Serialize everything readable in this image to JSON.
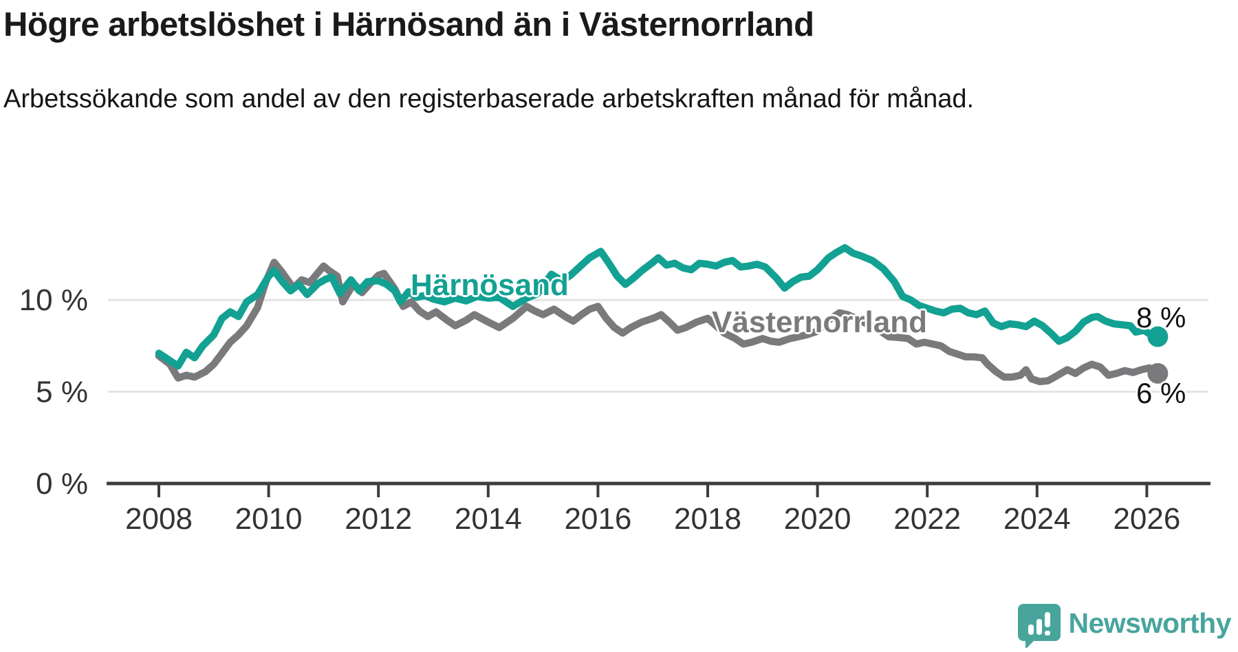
{
  "title": "Högre arbetslöshet i Härnösand än i Västernorrland",
  "subtitle": "Arbetssökande som andel av den registerbaserade arbetskraften månad för månad.",
  "colors": {
    "teal": "#12a192",
    "gray": "#7a7a7c",
    "grid": "#e3e3e3",
    "axis": "#3c3c3c",
    "tick_text": "#333333",
    "logo": "#47a59c"
  },
  "branding": {
    "logo_text": "Newsworthy",
    "logo_icon": "speech-bubble-bar-chart"
  },
  "chart_data": {
    "type": "line",
    "title": "Högre arbetslöshet i Härnösand än i Västernorrland",
    "subtitle": "Arbetssökande som andel av den registerbaserade arbetskraften månad för månad.",
    "unit": "%",
    "x_domain": [
      2007.9,
      2027.2
    ],
    "y_domain": [
      0,
      15
    ],
    "grid": "horizontal",
    "legend_position": "inline-labels",
    "x_ticks": [
      2008,
      2010,
      2012,
      2014,
      2016,
      2018,
      2020,
      2022,
      2024,
      2026
    ],
    "y_ticks": [
      {
        "value": 0,
        "label": "0 %"
      },
      {
        "value": 5,
        "label": "5 %"
      },
      {
        "value": 10,
        "label": "10 %"
      }
    ],
    "series": [
      {
        "name": "Härnösand",
        "color": "#12a192",
        "end_label": "8 %",
        "end_value": 8,
        "points": [
          [
            2008.0,
            7.1
          ],
          [
            2008.2,
            6.7
          ],
          [
            2008.35,
            6.4
          ],
          [
            2008.5,
            7.15
          ],
          [
            2008.65,
            6.85
          ],
          [
            2008.8,
            7.5
          ],
          [
            2009.0,
            8.1
          ],
          [
            2009.15,
            9.0
          ],
          [
            2009.3,
            9.35
          ],
          [
            2009.45,
            9.1
          ],
          [
            2009.6,
            9.9
          ],
          [
            2009.8,
            10.3
          ],
          [
            2010.0,
            11.3
          ],
          [
            2010.1,
            11.6
          ],
          [
            2010.25,
            11.0
          ],
          [
            2010.4,
            10.5
          ],
          [
            2010.55,
            10.85
          ],
          [
            2010.7,
            10.3
          ],
          [
            2010.9,
            10.9
          ],
          [
            2011.05,
            11.15
          ],
          [
            2011.15,
            11.25
          ],
          [
            2011.3,
            10.35
          ],
          [
            2011.5,
            11.1
          ],
          [
            2011.65,
            10.5
          ],
          [
            2011.8,
            11.0
          ],
          [
            2012.0,
            11.05
          ],
          [
            2012.15,
            10.85
          ],
          [
            2012.3,
            10.5
          ],
          [
            2012.4,
            9.9
          ],
          [
            2012.55,
            10.45
          ],
          [
            2012.7,
            10.15
          ],
          [
            2012.85,
            10.25
          ],
          [
            2013.0,
            10.05
          ],
          [
            2013.2,
            9.9
          ],
          [
            2013.4,
            10.1
          ],
          [
            2013.6,
            9.95
          ],
          [
            2013.8,
            10.2
          ],
          [
            2014.0,
            10.1
          ],
          [
            2014.2,
            10.15
          ],
          [
            2014.45,
            9.65
          ],
          [
            2014.7,
            10.1
          ],
          [
            2014.9,
            10.35
          ],
          [
            2015.15,
            11.4
          ],
          [
            2015.35,
            11.05
          ],
          [
            2015.5,
            11.35
          ],
          [
            2015.7,
            11.9
          ],
          [
            2015.85,
            12.3
          ],
          [
            2016.05,
            12.65
          ],
          [
            2016.2,
            12.0
          ],
          [
            2016.35,
            11.3
          ],
          [
            2016.5,
            10.85
          ],
          [
            2016.65,
            11.2
          ],
          [
            2016.8,
            11.6
          ],
          [
            2017.0,
            12.05
          ],
          [
            2017.1,
            12.3
          ],
          [
            2017.25,
            11.9
          ],
          [
            2017.4,
            12.0
          ],
          [
            2017.55,
            11.75
          ],
          [
            2017.7,
            11.65
          ],
          [
            2017.85,
            12.0
          ],
          [
            2018.0,
            11.95
          ],
          [
            2018.15,
            11.85
          ],
          [
            2018.3,
            12.05
          ],
          [
            2018.45,
            12.15
          ],
          [
            2018.6,
            11.8
          ],
          [
            2018.75,
            11.85
          ],
          [
            2018.9,
            11.95
          ],
          [
            2019.05,
            11.8
          ],
          [
            2019.25,
            11.2
          ],
          [
            2019.4,
            10.65
          ],
          [
            2019.55,
            11.0
          ],
          [
            2019.7,
            11.25
          ],
          [
            2019.85,
            11.3
          ],
          [
            2020.0,
            11.65
          ],
          [
            2020.2,
            12.3
          ],
          [
            2020.35,
            12.6
          ],
          [
            2020.5,
            12.85
          ],
          [
            2020.65,
            12.55
          ],
          [
            2020.8,
            12.4
          ],
          [
            2021.0,
            12.15
          ],
          [
            2021.2,
            11.7
          ],
          [
            2021.4,
            11.0
          ],
          [
            2021.55,
            10.2
          ],
          [
            2021.7,
            10.0
          ],
          [
            2021.85,
            9.7
          ],
          [
            2022.0,
            9.55
          ],
          [
            2022.15,
            9.4
          ],
          [
            2022.3,
            9.3
          ],
          [
            2022.45,
            9.5
          ],
          [
            2022.6,
            9.55
          ],
          [
            2022.75,
            9.3
          ],
          [
            2022.9,
            9.2
          ],
          [
            2023.05,
            9.4
          ],
          [
            2023.2,
            8.75
          ],
          [
            2023.35,
            8.55
          ],
          [
            2023.5,
            8.7
          ],
          [
            2023.65,
            8.65
          ],
          [
            2023.8,
            8.55
          ],
          [
            2023.95,
            8.85
          ],
          [
            2024.1,
            8.6
          ],
          [
            2024.25,
            8.2
          ],
          [
            2024.4,
            7.75
          ],
          [
            2024.55,
            7.95
          ],
          [
            2024.7,
            8.3
          ],
          [
            2024.85,
            8.8
          ],
          [
            2025.0,
            9.05
          ],
          [
            2025.1,
            9.1
          ],
          [
            2025.25,
            8.85
          ],
          [
            2025.4,
            8.7
          ],
          [
            2025.55,
            8.65
          ],
          [
            2025.7,
            8.6
          ],
          [
            2025.8,
            8.25
          ],
          [
            2025.95,
            8.35
          ],
          [
            2026.05,
            8.15
          ],
          [
            2026.2,
            8.0
          ]
        ]
      },
      {
        "name": "Västernorrland",
        "color": "#7a7a7c",
        "end_label": "6 %",
        "end_value": 6,
        "points": [
          [
            2008.0,
            6.95
          ],
          [
            2008.2,
            6.5
          ],
          [
            2008.35,
            5.75
          ],
          [
            2008.5,
            5.9
          ],
          [
            2008.65,
            5.8
          ],
          [
            2008.85,
            6.1
          ],
          [
            2009.0,
            6.5
          ],
          [
            2009.15,
            7.1
          ],
          [
            2009.3,
            7.7
          ],
          [
            2009.45,
            8.1
          ],
          [
            2009.6,
            8.6
          ],
          [
            2009.8,
            9.6
          ],
          [
            2009.95,
            11.0
          ],
          [
            2010.1,
            12.05
          ],
          [
            2010.25,
            11.5
          ],
          [
            2010.45,
            10.65
          ],
          [
            2010.6,
            11.1
          ],
          [
            2010.75,
            10.95
          ],
          [
            2011.0,
            11.85
          ],
          [
            2011.1,
            11.6
          ],
          [
            2011.25,
            11.3
          ],
          [
            2011.35,
            9.9
          ],
          [
            2011.55,
            10.9
          ],
          [
            2011.7,
            10.4
          ],
          [
            2011.85,
            10.9
          ],
          [
            2012.0,
            11.35
          ],
          [
            2012.1,
            11.45
          ],
          [
            2012.3,
            10.6
          ],
          [
            2012.45,
            9.65
          ],
          [
            2012.6,
            9.9
          ],
          [
            2012.75,
            9.4
          ],
          [
            2012.9,
            9.1
          ],
          [
            2013.05,
            9.35
          ],
          [
            2013.25,
            8.9
          ],
          [
            2013.4,
            8.6
          ],
          [
            2013.6,
            8.9
          ],
          [
            2013.75,
            9.2
          ],
          [
            2014.0,
            8.8
          ],
          [
            2014.2,
            8.5
          ],
          [
            2014.45,
            9.0
          ],
          [
            2014.7,
            9.65
          ],
          [
            2014.85,
            9.4
          ],
          [
            2015.0,
            9.2
          ],
          [
            2015.2,
            9.5
          ],
          [
            2015.4,
            9.1
          ],
          [
            2015.55,
            8.85
          ],
          [
            2015.7,
            9.2
          ],
          [
            2015.85,
            9.5
          ],
          [
            2016.0,
            9.65
          ],
          [
            2016.15,
            9.0
          ],
          [
            2016.3,
            8.5
          ],
          [
            2016.45,
            8.2
          ],
          [
            2016.6,
            8.5
          ],
          [
            2016.8,
            8.8
          ],
          [
            2017.0,
            9.0
          ],
          [
            2017.15,
            9.2
          ],
          [
            2017.3,
            8.8
          ],
          [
            2017.45,
            8.35
          ],
          [
            2017.6,
            8.5
          ],
          [
            2017.8,
            8.8
          ],
          [
            2018.0,
            9.0
          ],
          [
            2018.15,
            8.6
          ],
          [
            2018.3,
            8.2
          ],
          [
            2018.5,
            7.9
          ],
          [
            2018.65,
            7.6
          ],
          [
            2018.8,
            7.7
          ],
          [
            2019.0,
            7.9
          ],
          [
            2019.15,
            7.75
          ],
          [
            2019.3,
            7.7
          ],
          [
            2019.5,
            7.9
          ],
          [
            2019.65,
            8.0
          ],
          [
            2019.8,
            8.1
          ],
          [
            2020.0,
            8.3
          ],
          [
            2020.2,
            8.9
          ],
          [
            2020.4,
            9.3
          ],
          [
            2020.55,
            9.2
          ],
          [
            2020.7,
            9.0
          ],
          [
            2020.9,
            8.7
          ],
          [
            2021.1,
            8.4
          ],
          [
            2021.3,
            8.0
          ],
          [
            2021.5,
            7.95
          ],
          [
            2021.65,
            7.9
          ],
          [
            2021.8,
            7.6
          ],
          [
            2021.95,
            7.7
          ],
          [
            2022.1,
            7.6
          ],
          [
            2022.25,
            7.5
          ],
          [
            2022.4,
            7.2
          ],
          [
            2022.55,
            7.05
          ],
          [
            2022.7,
            6.9
          ],
          [
            2022.85,
            6.9
          ],
          [
            2023.0,
            6.85
          ],
          [
            2023.1,
            6.5
          ],
          [
            2023.25,
            6.1
          ],
          [
            2023.4,
            5.8
          ],
          [
            2023.55,
            5.8
          ],
          [
            2023.7,
            5.9
          ],
          [
            2023.8,
            6.2
          ],
          [
            2023.9,
            5.7
          ],
          [
            2024.05,
            5.55
          ],
          [
            2024.2,
            5.6
          ],
          [
            2024.35,
            5.85
          ],
          [
            2024.55,
            6.2
          ],
          [
            2024.7,
            6.0
          ],
          [
            2024.85,
            6.3
          ],
          [
            2025.0,
            6.5
          ],
          [
            2025.15,
            6.35
          ],
          [
            2025.3,
            5.9
          ],
          [
            2025.45,
            6.0
          ],
          [
            2025.6,
            6.15
          ],
          [
            2025.75,
            6.05
          ],
          [
            2025.9,
            6.2
          ],
          [
            2026.05,
            6.3
          ],
          [
            2026.2,
            6.0
          ]
        ]
      }
    ]
  }
}
